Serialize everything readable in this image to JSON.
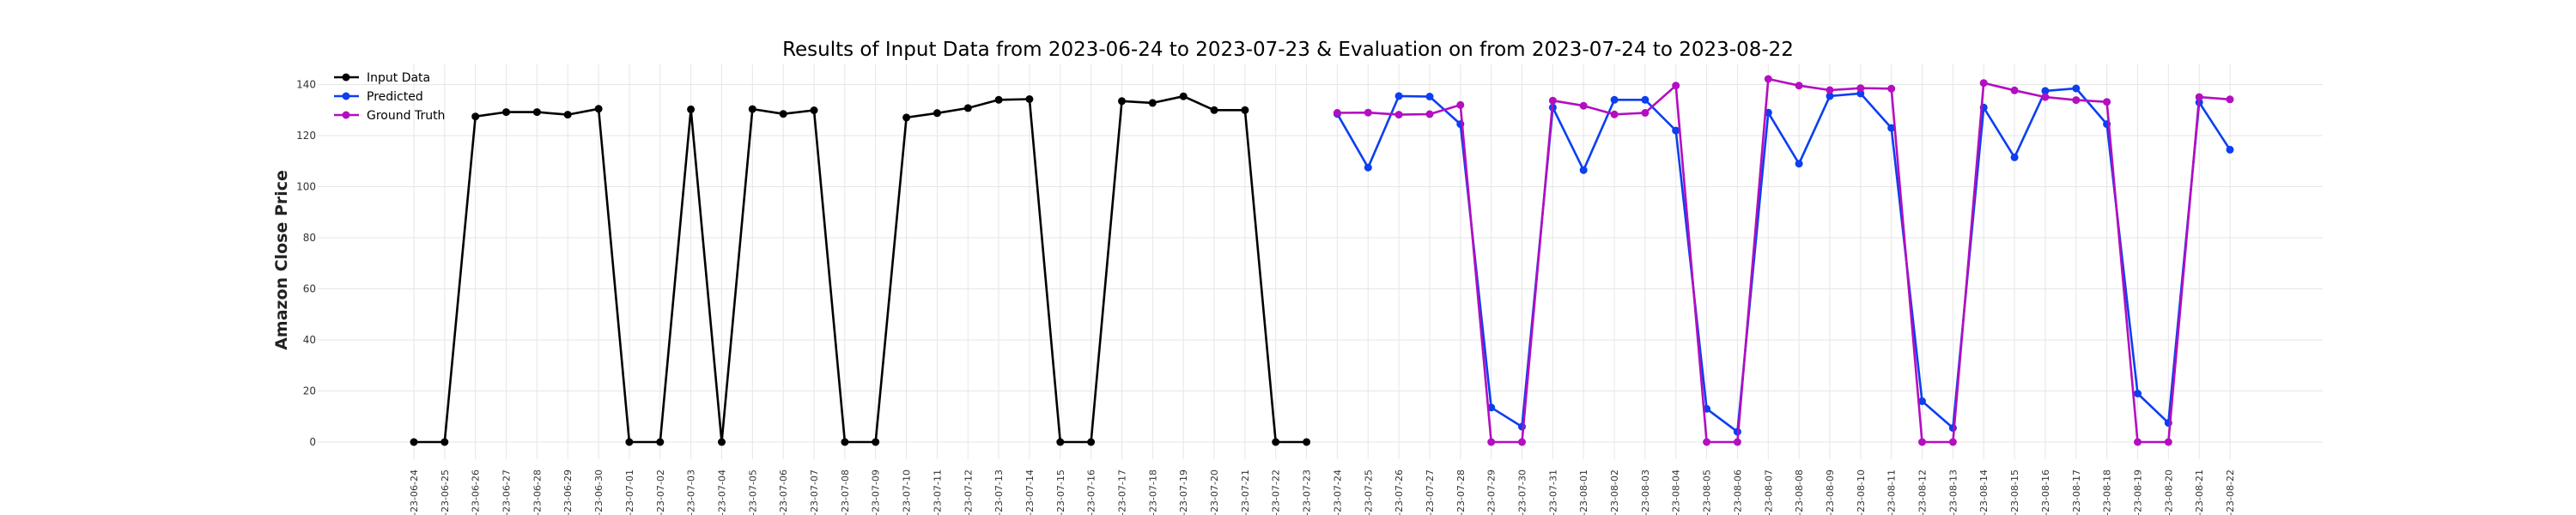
{
  "chart_data": {
    "type": "line",
    "title": "Results of Input Data from 2023-06-24 to 2023-07-23 & Evaluation on from 2023-07-24 to 2023-08-22",
    "ylabel": "Amazon Close Price",
    "xlabel": "",
    "ylim": [
      -10,
      150
    ],
    "yticks": [
      0,
      20,
      40,
      60,
      80,
      100,
      120,
      140
    ],
    "grid": true,
    "legend_position": "top-left",
    "x": [
      "2023-06-24",
      "2023-06-25",
      "2023-06-26",
      "2023-06-27",
      "2023-06-28",
      "2023-06-29",
      "2023-06-30",
      "2023-07-01",
      "2023-07-02",
      "2023-07-03",
      "2023-07-04",
      "2023-07-05",
      "2023-07-06",
      "2023-07-07",
      "2023-07-08",
      "2023-07-09",
      "2023-07-10",
      "2023-07-11",
      "2023-07-12",
      "2023-07-13",
      "2023-07-14",
      "2023-07-15",
      "2023-07-16",
      "2023-07-17",
      "2023-07-18",
      "2023-07-19",
      "2023-07-20",
      "2023-07-21",
      "2023-07-22",
      "2023-07-23",
      "2023-07-24",
      "2023-07-25",
      "2023-07-26",
      "2023-07-27",
      "2023-07-28",
      "2023-07-29",
      "2023-07-30",
      "2023-07-31",
      "2023-08-01",
      "2023-08-02",
      "2023-08-03",
      "2023-08-04",
      "2023-08-05",
      "2023-08-06",
      "2023-08-07",
      "2023-08-08",
      "2023-08-09",
      "2023-08-10",
      "2023-08-11",
      "2023-08-12",
      "2023-08-13",
      "2023-08-14",
      "2023-08-15",
      "2023-08-16",
      "2023-08-17",
      "2023-08-18",
      "2023-08-19",
      "2023-08-20",
      "2023-08-21",
      "2023-08-22"
    ],
    "x_tick_labels": [
      "-23-06-24",
      "-23-06-25",
      "-23-06-26",
      "-23-06-27",
      "-23-06-28",
      "-23-06-29",
      "-23-06-30",
      "-23-07-01",
      "-23-07-02",
      "-23-07-03",
      "-23-07-04",
      "-23-07-05",
      "-23-07-06",
      "-23-07-07",
      "-23-07-08",
      "-23-07-09",
      "-23-07-10",
      "-23-07-11",
      "-23-07-12",
      "-23-07-13",
      "-23-07-14",
      "-23-07-15",
      "-23-07-16",
      "-23-07-17",
      "-23-07-18",
      "-23-07-19",
      "-23-07-20",
      "-23-07-21",
      "-23-07-22",
      "-23-07-23",
      "-23-07-24",
      "-23-07-25",
      "-23-07-26",
      "-23-07-27",
      "-23-07-28",
      "-23-07-29",
      "-23-07-30",
      "-23-07-31",
      "-23-08-01",
      "-23-08-02",
      "-23-08-03",
      "-23-08-04",
      "-23-08-05",
      "-23-08-06",
      "-23-08-07",
      "-23-08-08",
      "-23-08-09",
      "-23-08-10",
      "-23-08-11",
      "-23-08-12",
      "-23-08-13",
      "-23-08-14",
      "-23-08-15",
      "-23-08-16",
      "-23-08-17",
      "-23-08-18",
      "-23-08-19",
      "-23-08-20",
      "-23-08-21",
      "-23-08-22"
    ],
    "series": [
      {
        "name": "Input Data",
        "color": "#000000",
        "x": [
          "2023-06-24",
          "2023-06-25",
          "2023-06-26",
          "2023-06-27",
          "2023-06-28",
          "2023-06-29",
          "2023-06-30",
          "2023-07-01",
          "2023-07-02",
          "2023-07-03",
          "2023-07-04",
          "2023-07-05",
          "2023-07-06",
          "2023-07-07",
          "2023-07-08",
          "2023-07-09",
          "2023-07-10",
          "2023-07-11",
          "2023-07-12",
          "2023-07-13",
          "2023-07-14",
          "2023-07-15",
          "2023-07-16",
          "2023-07-17",
          "2023-07-18",
          "2023-07-19",
          "2023-07-20",
          "2023-07-21",
          "2023-07-22",
          "2023-07-23"
        ],
        "values": [
          0,
          0,
          127.5,
          129.2,
          129.2,
          128.2,
          130.5,
          0,
          0,
          130.3,
          0,
          130.4,
          128.5,
          129.9,
          0,
          0,
          127.1,
          128.8,
          130.8,
          134.0,
          134.3,
          0,
          0,
          133.5,
          132.8,
          135.4,
          130.0,
          130.0,
          0,
          0
        ]
      },
      {
        "name": "Predicted",
        "color": "#0b3ff0",
        "x": [
          "2023-07-24",
          "2023-07-25",
          "2023-07-26",
          "2023-07-27",
          "2023-07-28",
          "2023-07-29",
          "2023-07-30",
          "2023-07-31",
          "2023-08-01",
          "2023-08-02",
          "2023-08-03",
          "2023-08-04",
          "2023-08-05",
          "2023-08-06",
          "2023-08-07",
          "2023-08-08",
          "2023-08-09",
          "2023-08-10",
          "2023-08-11",
          "2023-08-12",
          "2023-08-13",
          "2023-08-14",
          "2023-08-15",
          "2023-08-16",
          "2023-08-17",
          "2023-08-18",
          "2023-08-19",
          "2023-08-20",
          "2023-08-21",
          "2023-08-22"
        ],
        "values": [
          128.5,
          107.5,
          135.5,
          135.3,
          124.5,
          13.5,
          6.0,
          131.0,
          106.5,
          134.0,
          134.0,
          122.0,
          13.0,
          4.0,
          129.0,
          109.0,
          135.5,
          136.5,
          123.0,
          16.0,
          5.5,
          131.0,
          111.5,
          137.5,
          138.5,
          124.5,
          19.0,
          7.5,
          133.0,
          114.5
        ]
      },
      {
        "name": "Ground Truth",
        "color": "#b30ec0",
        "x": [
          "2023-07-24",
          "2023-07-25",
          "2023-07-26",
          "2023-07-27",
          "2023-07-28",
          "2023-07-29",
          "2023-07-30",
          "2023-07-31",
          "2023-08-01",
          "2023-08-02",
          "2023-08-03",
          "2023-08-04",
          "2023-08-05",
          "2023-08-06",
          "2023-08-07",
          "2023-08-08",
          "2023-08-09",
          "2023-08-10",
          "2023-08-11",
          "2023-08-12",
          "2023-08-13",
          "2023-08-14",
          "2023-08-15",
          "2023-08-16",
          "2023-08-17",
          "2023-08-18",
          "2023-08-19",
          "2023-08-20",
          "2023-08-21",
          "2023-08-22"
        ],
        "values": [
          128.9,
          129.0,
          128.2,
          128.4,
          132.0,
          0,
          0,
          133.7,
          131.7,
          128.3,
          128.9,
          139.6,
          0,
          0,
          142.2,
          139.6,
          137.8,
          138.6,
          138.4,
          0,
          0,
          140.6,
          137.7,
          135.1,
          133.9,
          133.2,
          0,
          0,
          135.1,
          134.2
        ]
      }
    ]
  }
}
